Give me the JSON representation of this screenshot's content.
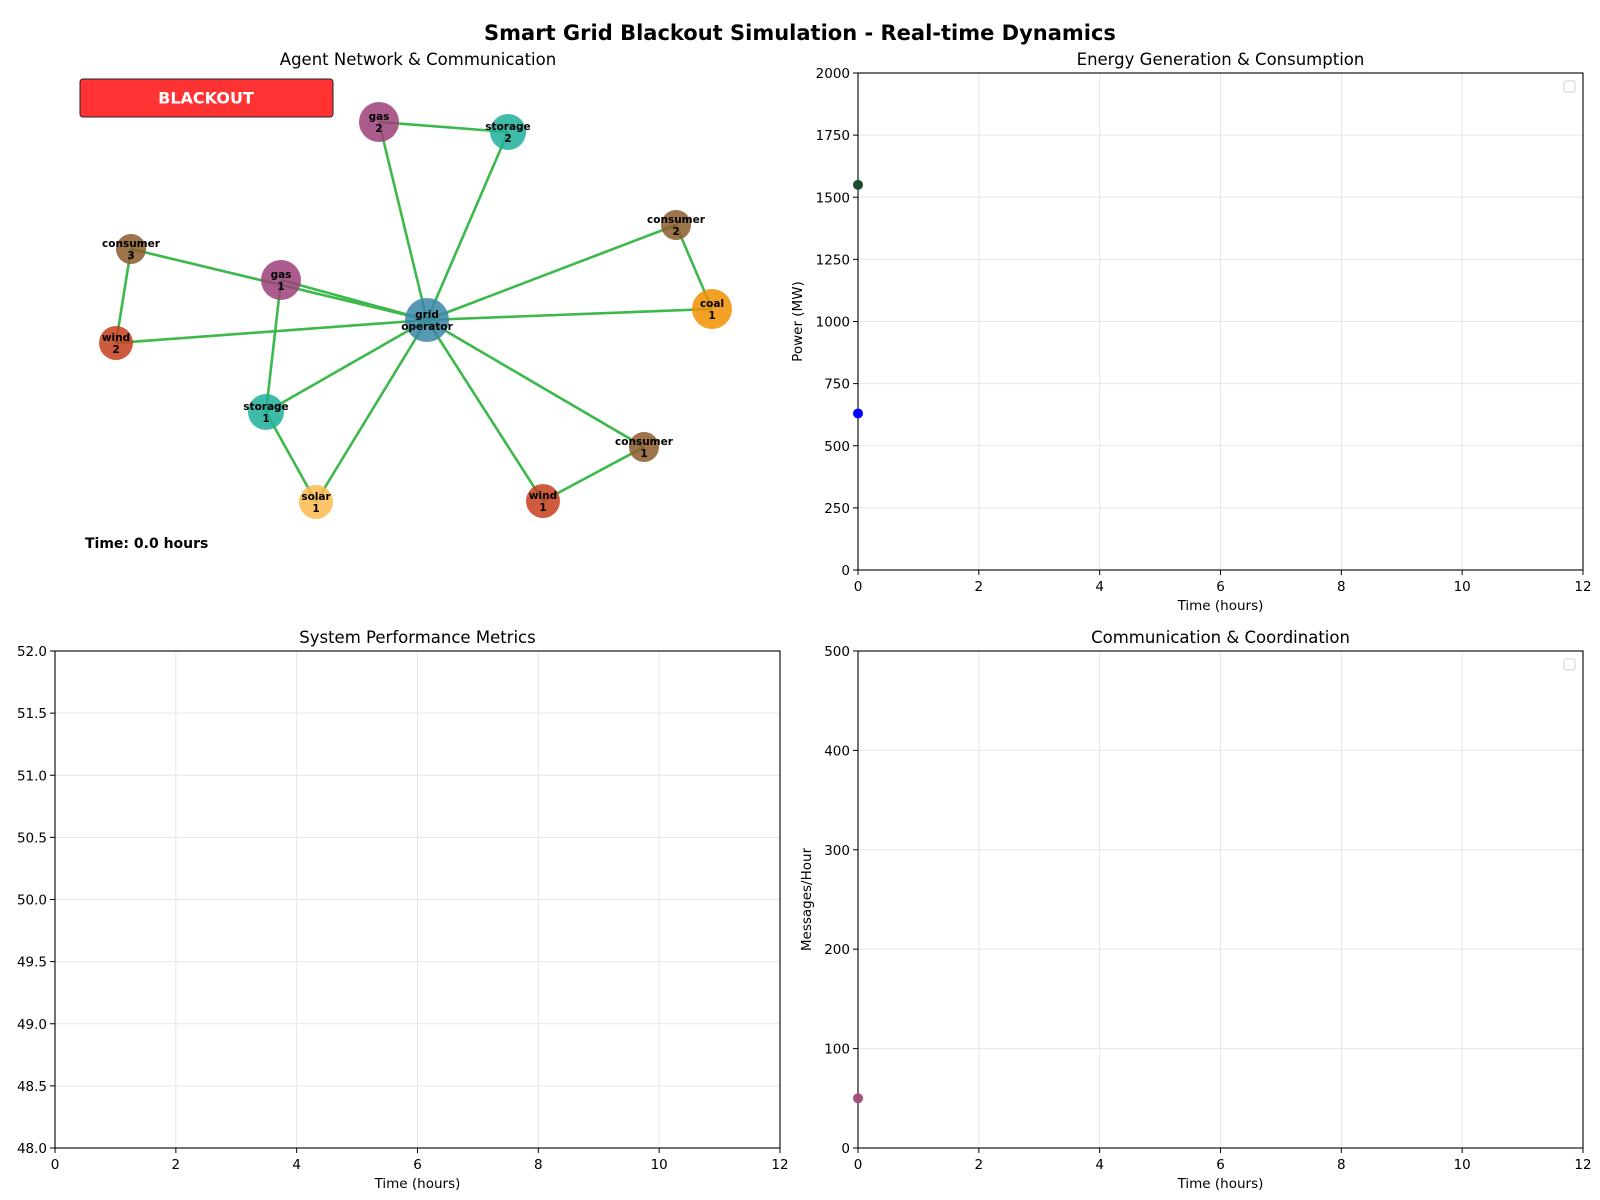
{
  "figure": {
    "title": "Smart Grid Blackout Simulation - Real-time Dynamics"
  },
  "colors": {
    "edge": "#3cb94a",
    "grid": "#e6e6e6",
    "blackout_badge": "#ff3333",
    "type_colors": {
      "grid": "#3a86a8",
      "gas": "#9c3f78",
      "storage": "#1fae9a",
      "consumer": "#8b5a2b",
      "wind": "#c73e1d",
      "coal": "#f18f01",
      "solar": "#ffb84d"
    }
  },
  "chart_data": [
    {
      "type": "network",
      "title": "Agent Network & Communication",
      "status_badge": "BLACKOUT",
      "time_text": "Time: 0.0 hours",
      "nodes": [
        {
          "id": "grid_operator",
          "label": [
            "grid",
            "operator"
          ],
          "type": "grid"
        },
        {
          "id": "gas_1",
          "label": [
            "gas",
            "1"
          ],
          "type": "gas"
        },
        {
          "id": "gas_2",
          "label": [
            "gas",
            "2"
          ],
          "type": "gas"
        },
        {
          "id": "storage_1",
          "label": [
            "storage",
            "1"
          ],
          "type": "storage"
        },
        {
          "id": "storage_2",
          "label": [
            "storage",
            "2"
          ],
          "type": "storage"
        },
        {
          "id": "consumer_1",
          "label": [
            "consumer",
            "1"
          ],
          "type": "consumer"
        },
        {
          "id": "consumer_2",
          "label": [
            "consumer",
            "2"
          ],
          "type": "consumer"
        },
        {
          "id": "consumer_3",
          "label": [
            "consumer",
            "3"
          ],
          "type": "consumer"
        },
        {
          "id": "wind_1",
          "label": [
            "wind",
            "1"
          ],
          "type": "wind"
        },
        {
          "id": "wind_2",
          "label": [
            "wind",
            "2"
          ],
          "type": "wind"
        },
        {
          "id": "coal_1",
          "label": [
            "coal",
            "1"
          ],
          "type": "coal"
        },
        {
          "id": "solar_1",
          "label": [
            "solar",
            "1"
          ],
          "type": "solar"
        }
      ],
      "edges": [
        [
          "grid_operator",
          "gas_1"
        ],
        [
          "grid_operator",
          "gas_2"
        ],
        [
          "grid_operator",
          "storage_2"
        ],
        [
          "grid_operator",
          "consumer_2"
        ],
        [
          "grid_operator",
          "coal_1"
        ],
        [
          "grid_operator",
          "consumer_1"
        ],
        [
          "grid_operator",
          "wind_1"
        ],
        [
          "grid_operator",
          "solar_1"
        ],
        [
          "grid_operator",
          "storage_1"
        ],
        [
          "grid_operator",
          "wind_2"
        ],
        [
          "grid_operator",
          "consumer_3"
        ],
        [
          "gas_2",
          "storage_2"
        ],
        [
          "consumer_2",
          "coal_1"
        ],
        [
          "consumer_3",
          "wind_2"
        ],
        [
          "gas_1",
          "storage_1"
        ],
        [
          "storage_1",
          "solar_1"
        ],
        [
          "consumer_1",
          "wind_1"
        ]
      ]
    },
    {
      "type": "line",
      "title": "Energy Generation & Consumption",
      "xlabel": "Time (hours)",
      "ylabel": "Power (MW)",
      "xlim": [
        0,
        12
      ],
      "ylim": [
        0,
        2000
      ],
      "xticks": [
        0,
        2,
        4,
        6,
        8,
        10,
        12
      ],
      "yticks": [
        0,
        250,
        500,
        750,
        1000,
        1250,
        1500,
        1750,
        2000
      ],
      "grid": true,
      "legend": "upper right (empty)",
      "series": [
        {
          "x": [
            0
          ],
          "y": [
            1550
          ],
          "color": "#1b4d2b"
        },
        {
          "x": [
            0
          ],
          "y": [
            630
          ],
          "color": "#0000ff"
        }
      ]
    },
    {
      "type": "line",
      "title": "System Performance Metrics",
      "xlabel": "Time (hours)",
      "ylabel": "",
      "xlim": [
        0,
        12
      ],
      "ylim": [
        48,
        52
      ],
      "xticks": [
        0,
        2,
        4,
        6,
        8,
        10,
        12
      ],
      "yticks": [
        48.0,
        48.5,
        49.0,
        49.5,
        50.0,
        50.5,
        51.0,
        51.5,
        52.0
      ],
      "grid": true,
      "series": []
    },
    {
      "type": "line",
      "title": "Communication & Coordination",
      "xlabel": "Time (hours)",
      "ylabel": "Messages/Hour",
      "xlim": [
        0,
        12
      ],
      "ylim": [
        0,
        500
      ],
      "xticks": [
        0,
        2,
        4,
        6,
        8,
        10,
        12
      ],
      "yticks": [
        0,
        100,
        200,
        300,
        400,
        500
      ],
      "grid": true,
      "legend": "upper right (empty)",
      "series": [
        {
          "x": [
            0
          ],
          "y": [
            50
          ],
          "color": "#a3507f"
        }
      ]
    }
  ]
}
